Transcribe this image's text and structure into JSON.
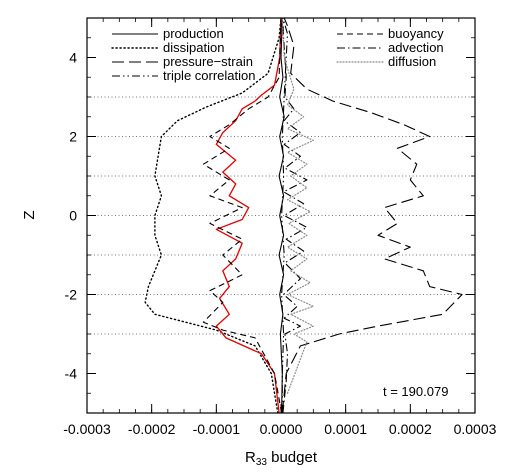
{
  "chart_data": {
    "type": "line",
    "xlabel": "R",
    "xlabel_sub": "33",
    "xlabel_suffix": " budget",
    "ylabel": "Z",
    "xlim": [
      -0.0003,
      0.0003
    ],
    "ylim": [
      -5,
      5
    ],
    "x_ticks": [
      -0.0003,
      -0.0002,
      -0.0001,
      0.0,
      0.0001,
      0.0002,
      0.0003
    ],
    "x_tick_labels": [
      "-0.0003",
      "-0.0002",
      "-0.0001",
      "0.0000",
      "0.0001",
      "0.0002",
      "0.0003"
    ],
    "y_ticks": [
      -4,
      -2,
      0,
      2,
      4
    ],
    "y_tick_labels": [
      "-4",
      "-2",
      "0",
      "2",
      "4"
    ],
    "grid_lines_y": [
      -3,
      -2,
      -1,
      0,
      1,
      2,
      3
    ],
    "annotation": "t = 190.079",
    "legend": [
      {
        "label": "production",
        "style": "solid",
        "column": 1
      },
      {
        "label": "dissipation",
        "style": "dotted",
        "column": 1
      },
      {
        "label": "pressure−strain",
        "style": "longdash",
        "column": 1
      },
      {
        "label": "triple correlation",
        "style": "dashdotdot",
        "column": 1
      },
      {
        "label": "buoyancy",
        "style": "dashed",
        "column": 2
      },
      {
        "label": "advection",
        "style": "dashdot",
        "column": 2
      },
      {
        "label": "diffusion",
        "style": "finedot",
        "column": 2
      }
    ],
    "series": [
      {
        "name": "production",
        "color": "#000000",
        "style": "solid",
        "points": [
          [
            1e-06,
            -5
          ],
          [
            2e-06,
            -4
          ],
          [
            -1e-06,
            -3
          ],
          [
            3e-06,
            -2.5
          ],
          [
            -2e-06,
            -2
          ],
          [
            4e-06,
            -1.5
          ],
          [
            -3e-06,
            -1
          ],
          [
            4e-06,
            -0.5
          ],
          [
            -2e-06,
            0
          ],
          [
            4e-06,
            0.5
          ],
          [
            -3e-06,
            1
          ],
          [
            4e-06,
            1.5
          ],
          [
            -2e-06,
            2
          ],
          [
            5e-06,
            2.5
          ],
          [
            -2e-06,
            3
          ],
          [
            3e-06,
            3.5
          ],
          [
            0,
            4
          ],
          [
            2e-06,
            5
          ]
        ]
      },
      {
        "name": "dissipation",
        "color": "#000000",
        "style": "dotted",
        "points": [
          [
            -5e-06,
            -5
          ],
          [
            -1.5e-05,
            -4
          ],
          [
            -4e-05,
            -3.3
          ],
          [
            -0.0001,
            -2.9
          ],
          [
            -0.000195,
            -2.5
          ],
          [
            -0.00021,
            -2.2
          ],
          [
            -0.000205,
            -1.8
          ],
          [
            -0.000195,
            -1.4
          ],
          [
            -0.000185,
            -1
          ],
          [
            -0.000195,
            -0.5
          ],
          [
            -0.000195,
            0
          ],
          [
            -0.000185,
            0.5
          ],
          [
            -0.000195,
            1
          ],
          [
            -0.00019,
            1.5
          ],
          [
            -0.000185,
            2
          ],
          [
            -0.00016,
            2.4
          ],
          [
            -0.000115,
            2.75
          ],
          [
            -6e-05,
            3.1
          ],
          [
            -2e-05,
            3.6
          ],
          [
            -3e-06,
            4.5
          ],
          [
            0,
            5
          ]
        ]
      },
      {
        "name": "dissipation (red)",
        "color": "#e00000",
        "style": "solid",
        "points": [
          [
            -3e-06,
            -5
          ],
          [
            -1e-05,
            -4
          ],
          [
            -3e-05,
            -3.5
          ],
          [
            -8.5e-05,
            -3.1
          ],
          [
            -0.0001,
            -2.8
          ],
          [
            -8e-05,
            -2.5
          ],
          [
            -9.5e-05,
            -2.1
          ],
          [
            -8e-05,
            -1.8
          ],
          [
            -9e-05,
            -1.4
          ],
          [
            -7e-05,
            -1.1
          ],
          [
            -6e-05,
            -0.7
          ],
          [
            -0.0001,
            -0.35
          ],
          [
            -6e-05,
            -0.1
          ],
          [
            -5e-05,
            0.2
          ],
          [
            -8e-05,
            0.5
          ],
          [
            -7e-05,
            0.8
          ],
          [
            -9e-05,
            1.1
          ],
          [
            -7e-05,
            1.4
          ],
          [
            -0.0001,
            1.8
          ],
          [
            -9e-05,
            2.1
          ],
          [
            -7e-05,
            2.4
          ],
          [
            -6e-05,
            2.7
          ],
          [
            -4e-05,
            2.9
          ],
          [
            -3e-05,
            3.05
          ],
          [
            -1e-05,
            3.3
          ],
          [
            -2e-06,
            4
          ],
          [
            0,
            5
          ]
        ]
      },
      {
        "name": "pressure−strain",
        "color": "#000000",
        "style": "longdash",
        "points": [
          [
            2e-06,
            -5
          ],
          [
            8e-06,
            -4
          ],
          [
            3e-05,
            -3.3
          ],
          [
            9e-05,
            -3
          ],
          [
            0.00015,
            -2.8
          ],
          [
            0.00025,
            -2.5
          ],
          [
            0.00028,
            -2
          ],
          [
            0.00023,
            -1.8
          ],
          [
            0.00022,
            -1.4
          ],
          [
            0.00016,
            -1.1
          ],
          [
            0.0002,
            -0.8
          ],
          [
            0.00015,
            -0.5
          ],
          [
            0.00018,
            -0.2
          ],
          [
            0.00016,
            0.2
          ],
          [
            0.00022,
            0.5
          ],
          [
            0.0002,
            0.9
          ],
          [
            0.00021,
            1.3
          ],
          [
            0.00018,
            1.7
          ],
          [
            0.00023,
            2
          ],
          [
            0.00019,
            2.3
          ],
          [
            0.00014,
            2.6
          ],
          [
            8e-05,
            2.9
          ],
          [
            4e-05,
            3.2
          ],
          [
            1.5e-05,
            3.6
          ],
          [
            2e-05,
            4.3
          ],
          [
            1e-05,
            4.8
          ],
          [
            5e-06,
            5
          ]
        ]
      },
      {
        "name": "buoyancy",
        "color": "#000000",
        "style": "dashed",
        "points": [
          [
            1e-06,
            -5
          ],
          [
            -1e-05,
            -4
          ],
          [
            -4e-05,
            -3.1
          ],
          [
            -9e-05,
            -2.9
          ],
          [
            -0.00012,
            -2.7
          ],
          [
            -9e-05,
            -2.2
          ],
          [
            -0.00011,
            -1.9
          ],
          [
            -6e-05,
            -1.5
          ],
          [
            -9e-05,
            -1
          ],
          [
            -6e-05,
            -0.6
          ],
          [
            -0.00011,
            -0.2
          ],
          [
            -6e-05,
            0.2
          ],
          [
            -0.00011,
            0.5
          ],
          [
            -8e-05,
            0.9
          ],
          [
            -0.00012,
            1.3
          ],
          [
            -8e-05,
            1.7
          ],
          [
            -0.00011,
            2
          ],
          [
            -8e-05,
            2.3
          ],
          [
            -5e-05,
            2.7
          ],
          [
            -2e-05,
            3
          ],
          [
            -3e-06,
            3.5
          ],
          [
            0,
            5
          ]
        ]
      },
      {
        "name": "advection",
        "color": "#000000",
        "style": "dashdot",
        "points": [
          [
            3e-06,
            -5
          ],
          [
            8e-06,
            -4.2
          ],
          [
            1e-05,
            -3.5
          ],
          [
            6e-06,
            -3
          ],
          [
            3e-05,
            -2.8
          ],
          [
            5e-06,
            -2.6
          ],
          [
            2.5e-05,
            -2.3
          ],
          [
            4e-06,
            -2
          ],
          [
            3e-05,
            -1.6
          ],
          [
            6e-06,
            -1.2
          ],
          [
            3.5e-05,
            -0.9
          ],
          [
            8e-06,
            -0.6
          ],
          [
            4e-05,
            -0.3
          ],
          [
            5e-06,
            0
          ],
          [
            3.5e-05,
            0.3
          ],
          [
            4e-06,
            0.6
          ],
          [
            4e-05,
            0.9
          ],
          [
            6e-06,
            1.2
          ],
          [
            3e-05,
            1.5
          ],
          [
            5e-06,
            1.8
          ],
          [
            3e-05,
            2.1
          ],
          [
            5e-06,
            2.4
          ],
          [
            2e-05,
            2.7
          ],
          [
            6e-06,
            3
          ],
          [
            8e-06,
            3.5
          ],
          [
            4e-06,
            4.5
          ],
          [
            3e-06,
            5
          ]
        ]
      },
      {
        "name": "triple correlation",
        "color": "#000000",
        "style": "dashdotdot",
        "points": [
          [
            2e-06,
            -5
          ],
          [
            2e-06,
            -4
          ],
          [
            4e-06,
            -3
          ],
          [
            1e-06,
            -2
          ],
          [
            5e-06,
            -1
          ],
          [
            1e-06,
            0
          ],
          [
            4e-06,
            1
          ],
          [
            2e-06,
            2
          ],
          [
            5e-06,
            3
          ],
          [
            8e-06,
            4
          ],
          [
            1e-05,
            4.6
          ],
          [
            3e-06,
            5
          ]
        ]
      },
      {
        "name": "diffusion",
        "color": "#8a8a8a",
        "style": "finedot",
        "points": [
          [
            1e-05,
            -4.5
          ],
          [
            4e-05,
            -3.2
          ],
          [
            2e-05,
            -3
          ],
          [
            5e-05,
            -2.8
          ],
          [
            1.5e-05,
            -2.5
          ],
          [
            5e-05,
            -2.3
          ],
          [
            1e-05,
            -2
          ],
          [
            4.5e-05,
            -1.7
          ],
          [
            1.5e-05,
            -1.4
          ],
          [
            4e-05,
            -1.1
          ],
          [
            1e-05,
            -0.8
          ],
          [
            4e-05,
            -0.5
          ],
          [
            1.2e-05,
            -0.2
          ],
          [
            4.5e-05,
            0.1
          ],
          [
            1e-05,
            0.4
          ],
          [
            4e-05,
            0.7
          ],
          [
            1.5e-05,
            1
          ],
          [
            4e-05,
            1.3
          ],
          [
            1e-05,
            1.6
          ],
          [
            5e-05,
            1.9
          ],
          [
            1e-05,
            2.2
          ],
          [
            3.5e-05,
            2.5
          ],
          [
            1e-05,
            2.8
          ],
          [
            2e-05,
            3.2
          ],
          [
            5e-06,
            4
          ],
          [
            2e-06,
            5
          ]
        ]
      }
    ]
  }
}
